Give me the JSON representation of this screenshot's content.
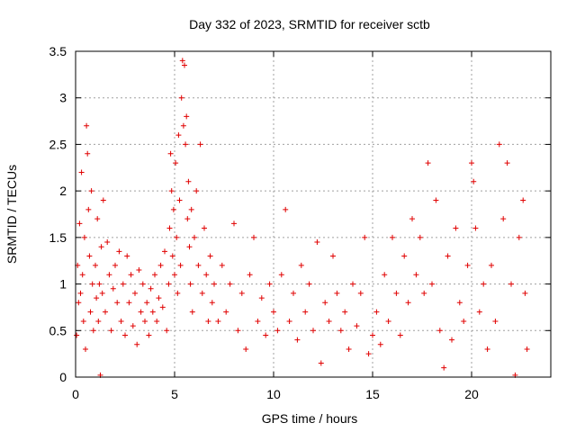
{
  "chart_data": {
    "type": "scatter",
    "title": "Day 332 of 2023, SRMTID for receiver sctb",
    "xlabel": "GPS time / hours",
    "ylabel": "SRMTID / TECUs",
    "xlim": [
      0,
      24
    ],
    "ylim": [
      0,
      3.5
    ],
    "xticks": [
      0,
      5,
      10,
      15,
      20
    ],
    "xtick_labels": [
      "0",
      "5",
      "10",
      "15",
      "20"
    ],
    "yticks": [
      0,
      0.5,
      1,
      1.5,
      2,
      2.5,
      3,
      3.5
    ],
    "ytick_labels": [
      "0",
      "0.5",
      "1",
      "1.5",
      "2",
      "2.5",
      "3",
      "3.5"
    ],
    "grid": true,
    "marker": "plus",
    "color": "#e00000",
    "series": [
      {
        "name": "SRMTID",
        "points": [
          [
            0.05,
            0.45
          ],
          [
            0.1,
            1.2
          ],
          [
            0.15,
            0.8
          ],
          [
            0.2,
            1.65
          ],
          [
            0.25,
            0.9
          ],
          [
            0.3,
            2.2
          ],
          [
            0.35,
            1.1
          ],
          [
            0.4,
            0.6
          ],
          [
            0.45,
            1.5
          ],
          [
            0.5,
            0.3
          ],
          [
            0.55,
            2.7
          ],
          [
            0.6,
            2.4
          ],
          [
            0.65,
            1.8
          ],
          [
            0.7,
            1.3
          ],
          [
            0.75,
            0.7
          ],
          [
            0.8,
            2.0
          ],
          [
            0.85,
            1.0
          ],
          [
            0.9,
            0.5
          ],
          [
            1.0,
            1.2
          ],
          [
            1.05,
            0.85
          ],
          [
            1.1,
            1.7
          ],
          [
            1.15,
            0.6
          ],
          [
            1.2,
            1.0
          ],
          [
            1.25,
            0.02
          ],
          [
            1.3,
            1.4
          ],
          [
            1.35,
            0.9
          ],
          [
            1.4,
            1.9
          ],
          [
            1.5,
            0.7
          ],
          [
            1.6,
            1.45
          ],
          [
            1.7,
            1.1
          ],
          [
            1.8,
            0.5
          ],
          [
            1.9,
            0.95
          ],
          [
            2.0,
            1.2
          ],
          [
            2.1,
            0.8
          ],
          [
            2.2,
            1.35
          ],
          [
            2.3,
            0.6
          ],
          [
            2.4,
            1.0
          ],
          [
            2.5,
            0.45
          ],
          [
            2.6,
            1.3
          ],
          [
            2.7,
            0.8
          ],
          [
            2.8,
            1.1
          ],
          [
            2.9,
            0.55
          ],
          [
            3.0,
            0.9
          ],
          [
            3.1,
            0.35
          ],
          [
            3.2,
            1.15
          ],
          [
            3.3,
            0.7
          ],
          [
            3.4,
            1.0
          ],
          [
            3.5,
            0.6
          ],
          [
            3.6,
            0.8
          ],
          [
            3.7,
            0.45
          ],
          [
            3.8,
            0.95
          ],
          [
            3.9,
            0.7
          ],
          [
            4.0,
            1.1
          ],
          [
            4.1,
            0.6
          ],
          [
            4.2,
            0.85
          ],
          [
            4.3,
            1.2
          ],
          [
            4.4,
            0.75
          ],
          [
            4.5,
            1.35
          ],
          [
            4.6,
            0.5
          ],
          [
            4.7,
            1.0
          ],
          [
            4.75,
            1.6
          ],
          [
            4.8,
            2.4
          ],
          [
            4.85,
            2.0
          ],
          [
            4.9,
            1.3
          ],
          [
            4.95,
            1.8
          ],
          [
            5.0,
            1.1
          ],
          [
            5.05,
            2.3
          ],
          [
            5.1,
            1.5
          ],
          [
            5.15,
            0.9
          ],
          [
            5.2,
            2.6
          ],
          [
            5.25,
            1.9
          ],
          [
            5.3,
            1.2
          ],
          [
            5.35,
            3.0
          ],
          [
            5.4,
            3.4
          ],
          [
            5.45,
            2.7
          ],
          [
            5.5,
            3.35
          ],
          [
            5.55,
            2.5
          ],
          [
            5.6,
            2.8
          ],
          [
            5.65,
            1.7
          ],
          [
            5.7,
            2.1
          ],
          [
            5.75,
            1.4
          ],
          [
            5.8,
            1.0
          ],
          [
            5.85,
            1.8
          ],
          [
            5.9,
            0.7
          ],
          [
            6.0,
            1.5
          ],
          [
            6.1,
            2.0
          ],
          [
            6.2,
            1.2
          ],
          [
            6.3,
            2.5
          ],
          [
            6.4,
            0.9
          ],
          [
            6.5,
            1.6
          ],
          [
            6.6,
            1.1
          ],
          [
            6.7,
            0.6
          ],
          [
            6.8,
            1.3
          ],
          [
            6.9,
            0.8
          ],
          [
            7.0,
            1.0
          ],
          [
            7.2,
            0.6
          ],
          [
            7.4,
            1.2
          ],
          [
            7.6,
            0.7
          ],
          [
            7.8,
            1.0
          ],
          [
            8.0,
            1.65
          ],
          [
            8.2,
            0.5
          ],
          [
            8.4,
            0.9
          ],
          [
            8.6,
            0.3
          ],
          [
            8.8,
            1.1
          ],
          [
            9.0,
            1.5
          ],
          [
            9.2,
            0.6
          ],
          [
            9.4,
            0.85
          ],
          [
            9.6,
            0.45
          ],
          [
            9.8,
            1.0
          ],
          [
            10.0,
            0.7
          ],
          [
            10.2,
            0.5
          ],
          [
            10.4,
            1.1
          ],
          [
            10.6,
            1.8
          ],
          [
            10.8,
            0.6
          ],
          [
            11.0,
            0.9
          ],
          [
            11.2,
            0.4
          ],
          [
            11.4,
            1.2
          ],
          [
            11.6,
            0.7
          ],
          [
            11.8,
            1.0
          ],
          [
            12.0,
            0.5
          ],
          [
            12.2,
            1.45
          ],
          [
            12.4,
            0.15
          ],
          [
            12.6,
            0.8
          ],
          [
            12.8,
            0.6
          ],
          [
            13.0,
            1.3
          ],
          [
            13.2,
            0.9
          ],
          [
            13.4,
            0.5
          ],
          [
            13.6,
            0.7
          ],
          [
            13.8,
            0.3
          ],
          [
            14.0,
            1.0
          ],
          [
            14.2,
            0.55
          ],
          [
            14.4,
            0.9
          ],
          [
            14.6,
            1.5
          ],
          [
            14.8,
            0.25
          ],
          [
            15.0,
            0.45
          ],
          [
            15.2,
            0.7
          ],
          [
            15.4,
            0.35
          ],
          [
            15.6,
            1.1
          ],
          [
            15.8,
            0.6
          ],
          [
            16.0,
            1.5
          ],
          [
            16.2,
            0.9
          ],
          [
            16.4,
            0.45
          ],
          [
            16.6,
            1.3
          ],
          [
            16.8,
            0.8
          ],
          [
            17.0,
            1.7
          ],
          [
            17.2,
            1.1
          ],
          [
            17.4,
            1.5
          ],
          [
            17.6,
            0.9
          ],
          [
            17.8,
            2.3
          ],
          [
            18.0,
            1.0
          ],
          [
            18.2,
            1.9
          ],
          [
            18.4,
            0.5
          ],
          [
            18.6,
            0.1
          ],
          [
            18.8,
            1.3
          ],
          [
            19.0,
            0.4
          ],
          [
            19.2,
            1.6
          ],
          [
            19.4,
            0.8
          ],
          [
            19.6,
            0.6
          ],
          [
            19.8,
            1.2
          ],
          [
            20.0,
            2.3
          ],
          [
            20.1,
            2.1
          ],
          [
            20.2,
            1.6
          ],
          [
            20.4,
            0.7
          ],
          [
            20.6,
            1.0
          ],
          [
            20.8,
            0.3
          ],
          [
            21.0,
            1.2
          ],
          [
            21.2,
            0.6
          ],
          [
            21.4,
            2.5
          ],
          [
            21.6,
            1.7
          ],
          [
            21.8,
            2.3
          ],
          [
            22.0,
            1.0
          ],
          [
            22.2,
            0.02
          ],
          [
            22.4,
            1.5
          ],
          [
            22.6,
            1.9
          ],
          [
            22.7,
            0.9
          ],
          [
            22.8,
            0.3
          ]
        ]
      }
    ]
  }
}
